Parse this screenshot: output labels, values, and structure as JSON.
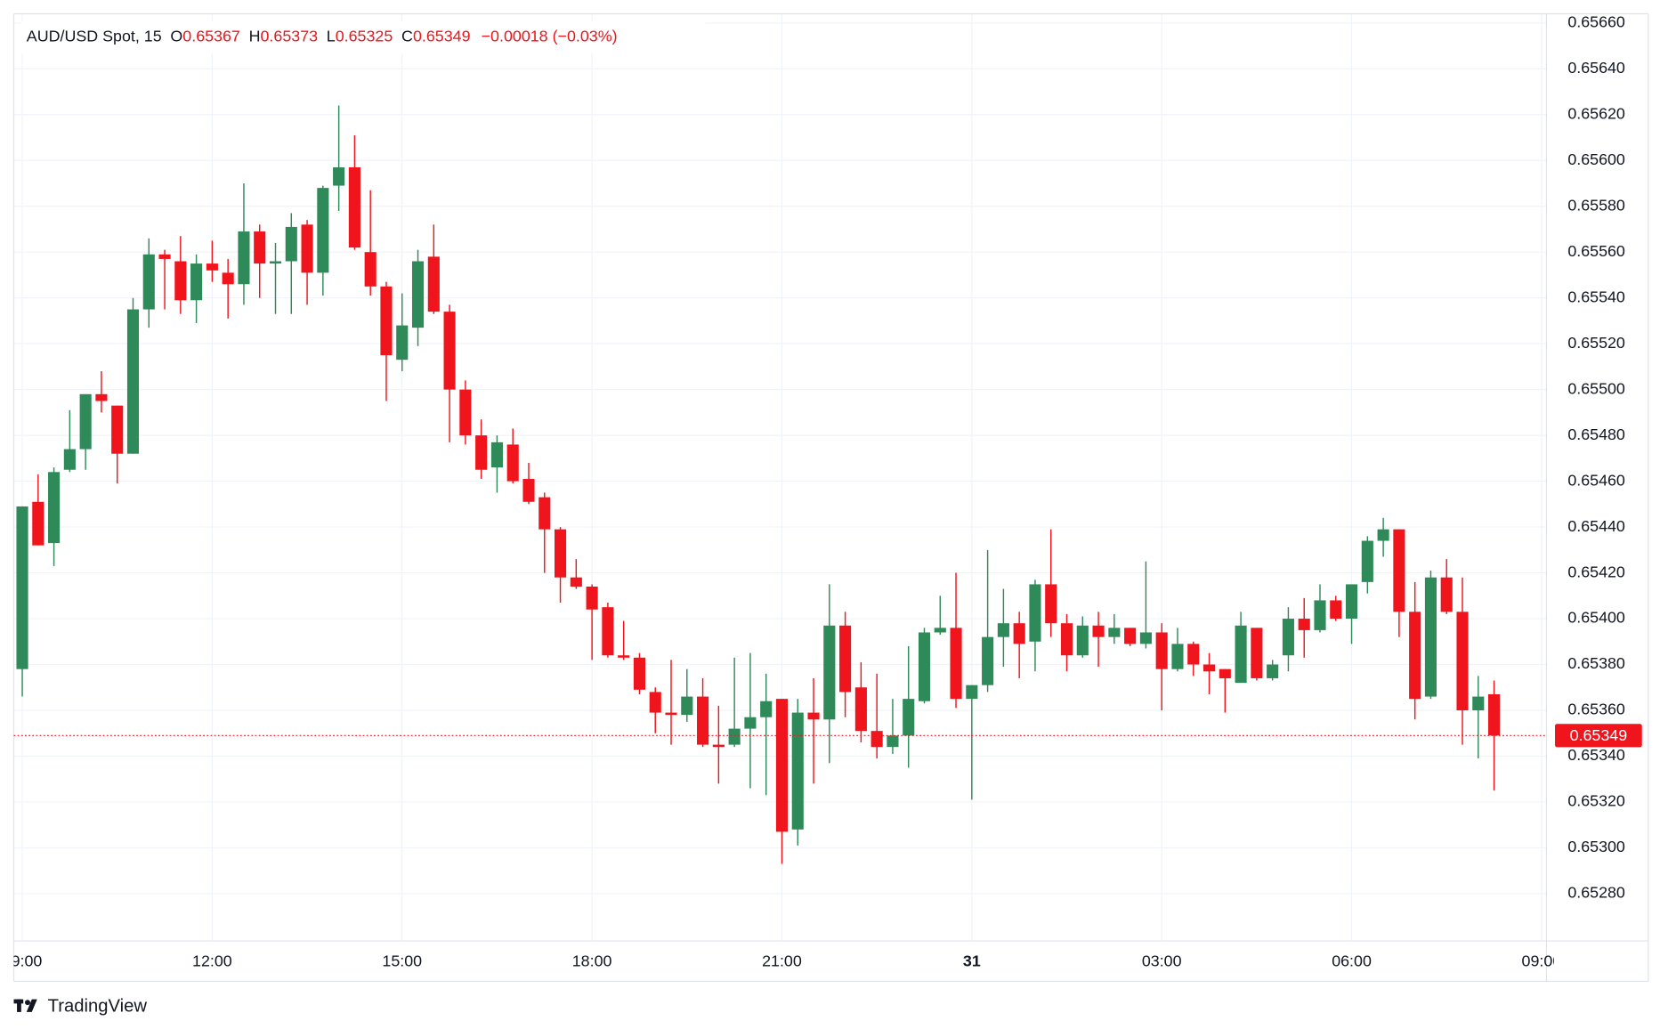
{
  "chart_data": {
    "type": "candlestick",
    "symbol": "AUD/USD Spot, 15",
    "ohlc_labels": {
      "o": "O",
      "h": "H",
      "l": "L",
      "c": "C"
    },
    "change": "−0.00018 (−0.03%)",
    "brand": "TradingView",
    "up_color": "#2f8a5a",
    "down_color": "#f0141c",
    "grid": true,
    "ylim": [
      0.6526,
      0.65664
    ],
    "yticks": [
      {
        "value": 0.6566,
        "label": "0.65660"
      },
      {
        "value": 0.6564,
        "label": "0.65640"
      },
      {
        "value": 0.6562,
        "label": "0.65620"
      },
      {
        "value": 0.656,
        "label": "0.65600"
      },
      {
        "value": 0.6558,
        "label": "0.65580"
      },
      {
        "value": 0.6556,
        "label": "0.65560"
      },
      {
        "value": 0.6554,
        "label": "0.65540"
      },
      {
        "value": 0.6552,
        "label": "0.65520"
      },
      {
        "value": 0.655,
        "label": "0.65500"
      },
      {
        "value": 0.6548,
        "label": "0.65480"
      },
      {
        "value": 0.6546,
        "label": "0.65460"
      },
      {
        "value": 0.6544,
        "label": "0.65440"
      },
      {
        "value": 0.6542,
        "label": "0.65420"
      },
      {
        "value": 0.654,
        "label": "0.65400"
      },
      {
        "value": 0.6538,
        "label": "0.65380"
      },
      {
        "value": 0.6536,
        "label": "0.65360"
      },
      {
        "value": 0.6534,
        "label": "0.65340"
      },
      {
        "value": 0.6532,
        "label": "0.65320"
      },
      {
        "value": 0.653,
        "label": "0.65300"
      },
      {
        "value": 0.6528,
        "label": "0.65280"
      }
    ],
    "xticks": [
      "09:00",
      "12:00",
      "15:00",
      "18:00",
      "21:00",
      "31",
      "03:00",
      "06:00",
      "09:00"
    ],
    "candles": [
      {
        "o": 0.65378,
        "h": 0.65449,
        "l": 0.65366,
        "c": 0.65449
      },
      {
        "o": 0.65451,
        "h": 0.65463,
        "l": 0.65432,
        "c": 0.65432
      },
      {
        "o": 0.65433,
        "h": 0.65466,
        "l": 0.65423,
        "c": 0.65464
      },
      {
        "o": 0.65465,
        "h": 0.65491,
        "l": 0.65464,
        "c": 0.65474
      },
      {
        "o": 0.65474,
        "h": 0.65498,
        "l": 0.65465,
        "c": 0.65498
      },
      {
        "o": 0.65498,
        "h": 0.65508,
        "l": 0.6549,
        "c": 0.65495
      },
      {
        "o": 0.65493,
        "h": 0.65493,
        "l": 0.65459,
        "c": 0.65472
      },
      {
        "o": 0.65472,
        "h": 0.6554,
        "l": 0.65472,
        "c": 0.65535
      },
      {
        "o": 0.65535,
        "h": 0.65566,
        "l": 0.65527,
        "c": 0.65559
      },
      {
        "o": 0.65559,
        "h": 0.65561,
        "l": 0.65535,
        "c": 0.65557
      },
      {
        "o": 0.65556,
        "h": 0.65567,
        "l": 0.65533,
        "c": 0.65539
      },
      {
        "o": 0.65539,
        "h": 0.65559,
        "l": 0.65529,
        "c": 0.65555
      },
      {
        "o": 0.65555,
        "h": 0.65565,
        "l": 0.65547,
        "c": 0.65552
      },
      {
        "o": 0.65551,
        "h": 0.65557,
        "l": 0.65531,
        "c": 0.65546
      },
      {
        "o": 0.65546,
        "h": 0.6559,
        "l": 0.65537,
        "c": 0.65569
      },
      {
        "o": 0.65569,
        "h": 0.65572,
        "l": 0.6554,
        "c": 0.65555
      },
      {
        "o": 0.65555,
        "h": 0.65564,
        "l": 0.65533,
        "c": 0.65556
      },
      {
        "o": 0.65556,
        "h": 0.65577,
        "l": 0.65533,
        "c": 0.65571
      },
      {
        "o": 0.65572,
        "h": 0.65574,
        "l": 0.65537,
        "c": 0.65551
      },
      {
        "o": 0.65551,
        "h": 0.65589,
        "l": 0.65541,
        "c": 0.65588
      },
      {
        "o": 0.65589,
        "h": 0.65624,
        "l": 0.65578,
        "c": 0.65597
      },
      {
        "o": 0.65597,
        "h": 0.65611,
        "l": 0.65561,
        "c": 0.65562
      },
      {
        "o": 0.6556,
        "h": 0.65587,
        "l": 0.65541,
        "c": 0.65545
      },
      {
        "o": 0.65545,
        "h": 0.65547,
        "l": 0.65495,
        "c": 0.65515
      },
      {
        "o": 0.65513,
        "h": 0.65542,
        "l": 0.65508,
        "c": 0.65528
      },
      {
        "o": 0.65527,
        "h": 0.65561,
        "l": 0.65519,
        "c": 0.65556
      },
      {
        "o": 0.65558,
        "h": 0.65572,
        "l": 0.65533,
        "c": 0.65534
      },
      {
        "o": 0.65534,
        "h": 0.65537,
        "l": 0.65477,
        "c": 0.655
      },
      {
        "o": 0.655,
        "h": 0.65504,
        "l": 0.65476,
        "c": 0.6548
      },
      {
        "o": 0.6548,
        "h": 0.65487,
        "l": 0.65461,
        "c": 0.65465
      },
      {
        "o": 0.65466,
        "h": 0.6548,
        "l": 0.65455,
        "c": 0.65477
      },
      {
        "o": 0.65476,
        "h": 0.65483,
        "l": 0.65459,
        "c": 0.6546
      },
      {
        "o": 0.65461,
        "h": 0.65468,
        "l": 0.6545,
        "c": 0.65451
      },
      {
        "o": 0.65453,
        "h": 0.65455,
        "l": 0.6542,
        "c": 0.65439
      },
      {
        "o": 0.65439,
        "h": 0.6544,
        "l": 0.65407,
        "c": 0.65418
      },
      {
        "o": 0.65418,
        "h": 0.65426,
        "l": 0.65413,
        "c": 0.65414
      },
      {
        "o": 0.65414,
        "h": 0.65415,
        "l": 0.65382,
        "c": 0.65404
      },
      {
        "o": 0.65405,
        "h": 0.65407,
        "l": 0.65383,
        "c": 0.65384
      },
      {
        "o": 0.65384,
        "h": 0.65399,
        "l": 0.65382,
        "c": 0.65383
      },
      {
        "o": 0.65383,
        "h": 0.65385,
        "l": 0.65367,
        "c": 0.65369
      },
      {
        "o": 0.65368,
        "h": 0.6537,
        "l": 0.6535,
        "c": 0.65359
      },
      {
        "o": 0.65359,
        "h": 0.65382,
        "l": 0.65345,
        "c": 0.65358
      },
      {
        "o": 0.65358,
        "h": 0.65378,
        "l": 0.65355,
        "c": 0.65366
      },
      {
        "o": 0.65366,
        "h": 0.65374,
        "l": 0.65344,
        "c": 0.65345
      },
      {
        "o": 0.65345,
        "h": 0.65362,
        "l": 0.65328,
        "c": 0.65344
      },
      {
        "o": 0.65345,
        "h": 0.65383,
        "l": 0.65344,
        "c": 0.65352
      },
      {
        "o": 0.65352,
        "h": 0.65385,
        "l": 0.65326,
        "c": 0.65357
      },
      {
        "o": 0.65357,
        "h": 0.65376,
        "l": 0.65323,
        "c": 0.65364
      },
      {
        "o": 0.65365,
        "h": 0.65365,
        "l": 0.65293,
        "c": 0.65307
      },
      {
        "o": 0.65308,
        "h": 0.65365,
        "l": 0.65301,
        "c": 0.65359
      },
      {
        "o": 0.65359,
        "h": 0.65374,
        "l": 0.65328,
        "c": 0.65356
      },
      {
        "o": 0.65356,
        "h": 0.65415,
        "l": 0.65337,
        "c": 0.65397
      },
      {
        "o": 0.65397,
        "h": 0.65403,
        "l": 0.65357,
        "c": 0.65368
      },
      {
        "o": 0.6537,
        "h": 0.65381,
        "l": 0.65346,
        "c": 0.65351
      },
      {
        "o": 0.65351,
        "h": 0.65376,
        "l": 0.65339,
        "c": 0.65344
      },
      {
        "o": 0.65344,
        "h": 0.65365,
        "l": 0.65341,
        "c": 0.65349
      },
      {
        "o": 0.65349,
        "h": 0.65388,
        "l": 0.65335,
        "c": 0.65365
      },
      {
        "o": 0.65364,
        "h": 0.65396,
        "l": 0.65363,
        "c": 0.65394
      },
      {
        "o": 0.65394,
        "h": 0.6541,
        "l": 0.65393,
        "c": 0.65396
      },
      {
        "o": 0.65396,
        "h": 0.6542,
        "l": 0.65361,
        "c": 0.65365
      },
      {
        "o": 0.65365,
        "h": 0.65371,
        "l": 0.65321,
        "c": 0.65371
      },
      {
        "o": 0.65371,
        "h": 0.6543,
        "l": 0.65368,
        "c": 0.65392
      },
      {
        "o": 0.65392,
        "h": 0.65413,
        "l": 0.65379,
        "c": 0.65398
      },
      {
        "o": 0.65398,
        "h": 0.65403,
        "l": 0.65374,
        "c": 0.65389
      },
      {
        "o": 0.6539,
        "h": 0.65417,
        "l": 0.65377,
        "c": 0.65415
      },
      {
        "o": 0.65415,
        "h": 0.65439,
        "l": 0.65392,
        "c": 0.65398
      },
      {
        "o": 0.65398,
        "h": 0.65402,
        "l": 0.65377,
        "c": 0.65384
      },
      {
        "o": 0.65384,
        "h": 0.65401,
        "l": 0.65383,
        "c": 0.65397
      },
      {
        "o": 0.65397,
        "h": 0.65403,
        "l": 0.65379,
        "c": 0.65392
      },
      {
        "o": 0.65392,
        "h": 0.65402,
        "l": 0.65389,
        "c": 0.65396
      },
      {
        "o": 0.65396,
        "h": 0.65396,
        "l": 0.65388,
        "c": 0.65389
      },
      {
        "o": 0.65389,
        "h": 0.65425,
        "l": 0.65387,
        "c": 0.65394
      },
      {
        "o": 0.65394,
        "h": 0.65398,
        "l": 0.6536,
        "c": 0.65378
      },
      {
        "o": 0.65378,
        "h": 0.65396,
        "l": 0.65377,
        "c": 0.65389
      },
      {
        "o": 0.65389,
        "h": 0.6539,
        "l": 0.65375,
        "c": 0.6538
      },
      {
        "o": 0.6538,
        "h": 0.65385,
        "l": 0.65367,
        "c": 0.65377
      },
      {
        "o": 0.65378,
        "h": 0.65378,
        "l": 0.65359,
        "c": 0.65374
      },
      {
        "o": 0.65372,
        "h": 0.65403,
        "l": 0.65372,
        "c": 0.65397
      },
      {
        "o": 0.65396,
        "h": 0.65396,
        "l": 0.65373,
        "c": 0.65374
      },
      {
        "o": 0.65374,
        "h": 0.65382,
        "l": 0.65373,
        "c": 0.6538
      },
      {
        "o": 0.65384,
        "h": 0.65405,
        "l": 0.65377,
        "c": 0.654
      },
      {
        "o": 0.654,
        "h": 0.65409,
        "l": 0.65383,
        "c": 0.65395
      },
      {
        "o": 0.65395,
        "h": 0.65415,
        "l": 0.65394,
        "c": 0.65408
      },
      {
        "o": 0.65408,
        "h": 0.6541,
        "l": 0.65399,
        "c": 0.654
      },
      {
        "o": 0.654,
        "h": 0.65415,
        "l": 0.65389,
        "c": 0.65415
      },
      {
        "o": 0.65416,
        "h": 0.65436,
        "l": 0.65411,
        "c": 0.65434
      },
      {
        "o": 0.65434,
        "h": 0.65444,
        "l": 0.65427,
        "c": 0.65439
      },
      {
        "o": 0.65439,
        "h": 0.65439,
        "l": 0.65392,
        "c": 0.65403
      },
      {
        "o": 0.65403,
        "h": 0.65416,
        "l": 0.65356,
        "c": 0.65365
      },
      {
        "o": 0.65366,
        "h": 0.65421,
        "l": 0.65365,
        "c": 0.65418
      },
      {
        "o": 0.65418,
        "h": 0.65426,
        "l": 0.65402,
        "c": 0.65403
      },
      {
        "o": 0.65403,
        "h": 0.65418,
        "l": 0.65345,
        "c": 0.6536
      },
      {
        "o": 0.6536,
        "h": 0.65375,
        "l": 0.65339,
        "c": 0.65366
      },
      {
        "o": 0.65367,
        "h": 0.65373,
        "l": 0.65325,
        "c": 0.65349
      }
    ]
  }
}
